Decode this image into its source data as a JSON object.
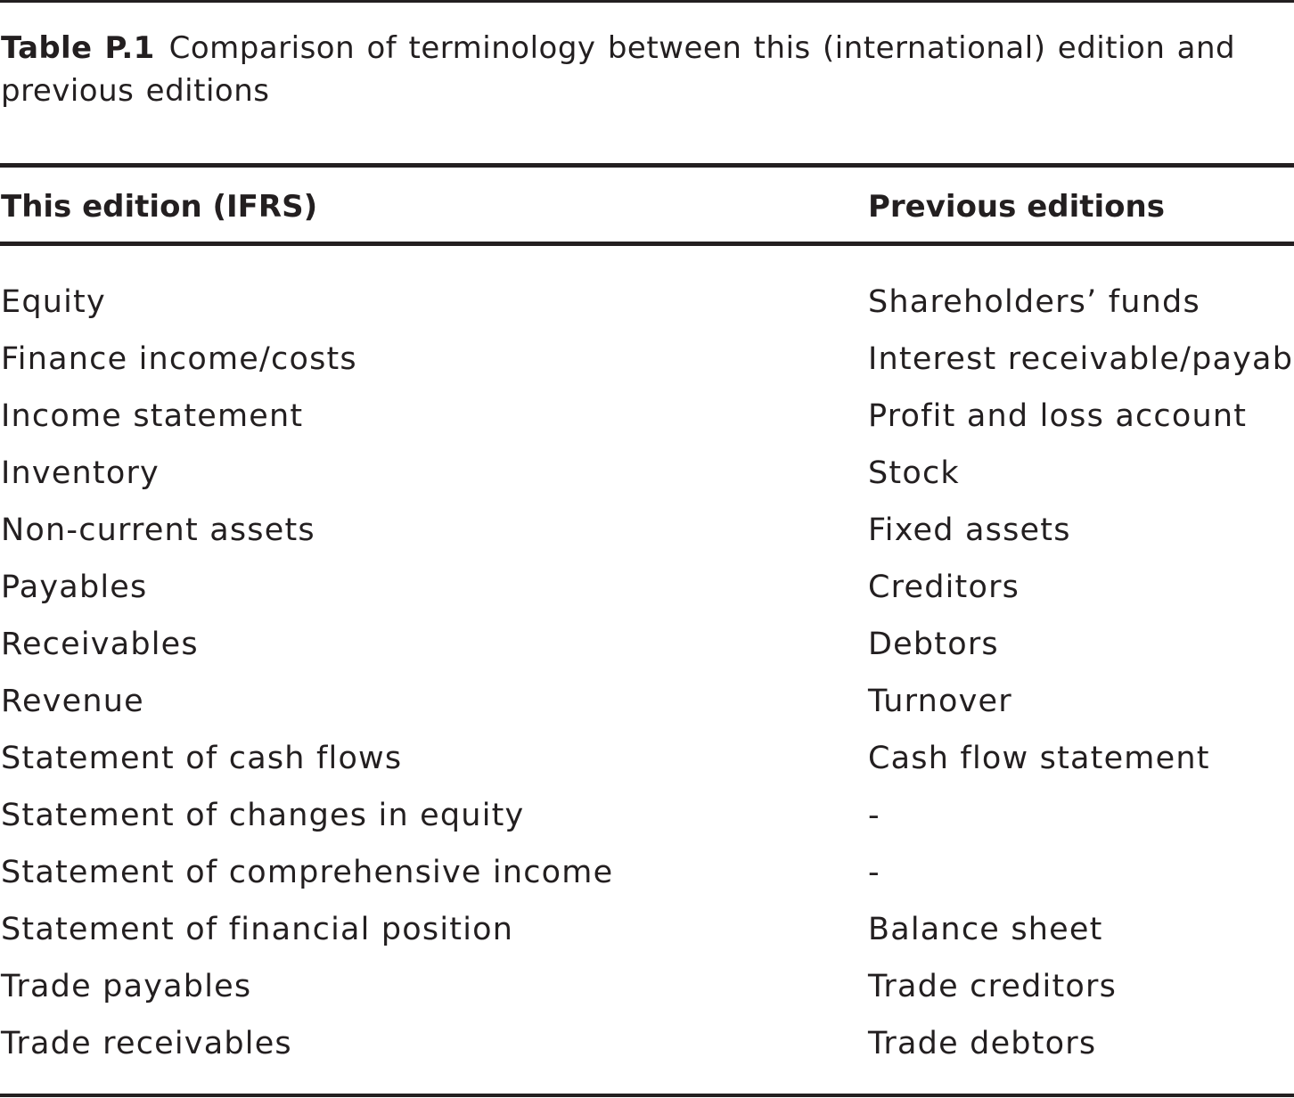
{
  "caption": {
    "label": "Table P.1",
    "text": "Comparison of terminology between this (international) edition and previous editions"
  },
  "columns": {
    "left": "This edition (IFRS)",
    "right": "Previous editions"
  },
  "rows": [
    {
      "ifrs": "Equity",
      "previous": "Shareholders’ funds"
    },
    {
      "ifrs": "Finance income/costs",
      "previous": "Interest receivable/payable"
    },
    {
      "ifrs": "Income statement",
      "previous": "Profit and loss account"
    },
    {
      "ifrs": "Inventory",
      "previous": "Stock"
    },
    {
      "ifrs": "Non-current assets",
      "previous": "Fixed assets"
    },
    {
      "ifrs": "Payables",
      "previous": "Creditors"
    },
    {
      "ifrs": "Receivables",
      "previous": "Debtors"
    },
    {
      "ifrs": "Revenue",
      "previous": "Turnover"
    },
    {
      "ifrs": "Statement of cash flows",
      "previous": "Cash flow statement"
    },
    {
      "ifrs": "Statement of changes in equity",
      "previous": "-"
    },
    {
      "ifrs": "Statement of comprehensive income",
      "previous": "-"
    },
    {
      "ifrs": "Statement of financial position",
      "previous": "Balance sheet"
    },
    {
      "ifrs": "Trade payables",
      "previous": "Trade creditors"
    },
    {
      "ifrs": "Trade receivables",
      "previous": "Trade debtors"
    }
  ]
}
